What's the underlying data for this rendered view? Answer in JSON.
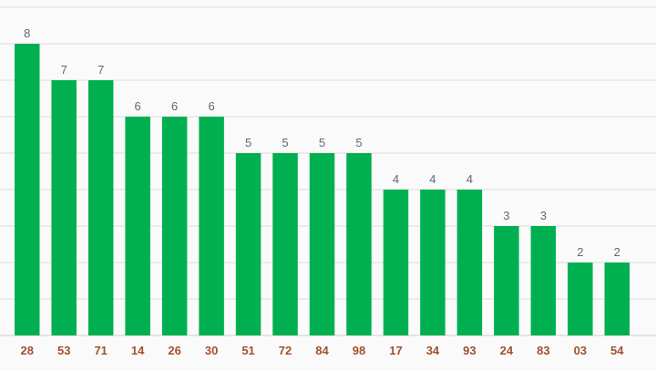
{
  "chart_data": {
    "type": "bar",
    "categories": [
      "28",
      "53",
      "71",
      "14",
      "26",
      "30",
      "51",
      "72",
      "84",
      "98",
      "17",
      "34",
      "93",
      "24",
      "83",
      "03",
      "54"
    ],
    "values": [
      8,
      7,
      7,
      6,
      6,
      6,
      5,
      5,
      5,
      5,
      4,
      4,
      4,
      3,
      3,
      2,
      2
    ],
    "ylim": [
      0,
      9
    ],
    "grid": true,
    "data_labels": true,
    "colors": {
      "bar": "#00b050",
      "value_label": "#5a6b7b",
      "tick_label": "#a0522d",
      "grid": "#dcdcdc",
      "background": "#fafafa"
    }
  }
}
